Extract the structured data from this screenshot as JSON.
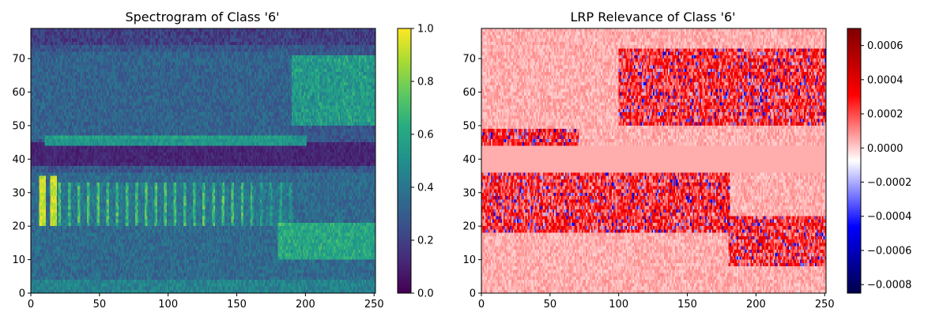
{
  "chart_data": [
    {
      "type": "heatmap",
      "title": "Spectrogram of Class '6'",
      "xlabel": "",
      "ylabel": "",
      "xlim": [
        0,
        251
      ],
      "ylim": [
        0,
        79
      ],
      "xticks": [
        "0",
        "50",
        "100",
        "150",
        "200",
        "250"
      ],
      "xtick_values": [
        0,
        50,
        100,
        150,
        200,
        250
      ],
      "yticks": [
        "0",
        "10",
        "20",
        "30",
        "40",
        "50",
        "60",
        "70"
      ],
      "ytick_values": [
        0,
        10,
        20,
        30,
        40,
        50,
        60,
        70
      ],
      "colormap": "viridis",
      "colorbar": {
        "min": 0.0,
        "max": 1.0,
        "ticks": [
          "0.0",
          "0.2",
          "0.4",
          "0.6",
          "0.8",
          "1.0"
        ],
        "tick_values": [
          0.0,
          0.2,
          0.4,
          0.6,
          0.8,
          1.0
        ]
      },
      "grid": false,
      "features": {
        "bright_onset_columns_x": [
          8,
          16
        ],
        "onset_band_y": [
          20,
          34
        ],
        "pulse_train_x": [
          20,
          190
        ],
        "pulse_spacing_x": 7,
        "pulse_band_y": [
          20,
          32
        ],
        "narrow_band_y": 45,
        "narrow_band_x": [
          10,
          200
        ],
        "upper_band_y": [
          50,
          70
        ],
        "upper_band_x": [
          190,
          250
        ],
        "low_band_y": [
          10,
          20
        ],
        "low_band_x": [
          180,
          250
        ],
        "silent_gap_y": [
          38,
          44
        ]
      }
    },
    {
      "type": "heatmap",
      "title": "LRP Relevance of Class '6'",
      "xlabel": "",
      "ylabel": "",
      "xlim": [
        0,
        251
      ],
      "ylim": [
        0,
        79
      ],
      "xticks": [
        "0",
        "50",
        "100",
        "150",
        "200",
        "250"
      ],
      "xtick_values": [
        0,
        50,
        100,
        150,
        200,
        250
      ],
      "yticks": [
        "0",
        "10",
        "20",
        "30",
        "40",
        "50",
        "60",
        "70"
      ],
      "ytick_values": [
        0,
        10,
        20,
        30,
        40,
        50,
        60,
        70
      ],
      "colormap": "seismic",
      "colorbar": {
        "min": -0.00085,
        "max": 0.0007,
        "center": 0.0,
        "ticks": [
          "−0.0008",
          "−0.0006",
          "−0.0004",
          "−0.0002",
          "0.0000",
          "0.0002",
          "0.0004",
          "0.0006"
        ],
        "tick_values": [
          -0.0008,
          -0.0006,
          -0.0004,
          -0.0002,
          0.0,
          0.0002,
          0.0004,
          0.0006
        ]
      },
      "grid": false,
      "features": {
        "baseline_relevance": 5e-05,
        "active_band_y_low": [
          18,
          35
        ],
        "active_band_x_low": [
          0,
          180
        ],
        "active_band_y_mid": [
          44,
          48
        ],
        "active_band_x_mid": [
          10,
          70
        ],
        "active_band_y_high": [
          50,
          72
        ],
        "active_band_x_high": [
          100,
          250
        ],
        "low_right_band_y": [
          8,
          22
        ],
        "low_right_band_x": [
          180,
          250
        ],
        "flat_gap_y": [
          36,
          43
        ]
      }
    }
  ]
}
